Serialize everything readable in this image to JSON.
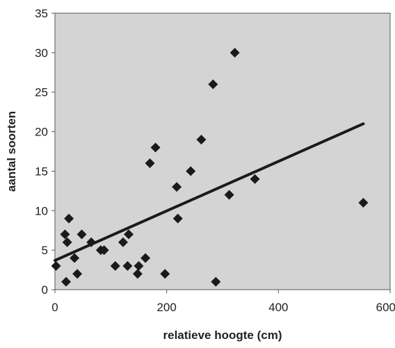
{
  "chart_data": {
    "type": "scatter",
    "title": "",
    "xlabel": "relatieve hoogte (cm)",
    "ylabel": "aantal soorten",
    "xlim": [
      0,
      600
    ],
    "ylim": [
      0,
      35
    ],
    "xticks": [
      0,
      200,
      400,
      600
    ],
    "yticks": [
      0,
      5,
      10,
      15,
      20,
      25,
      30,
      35
    ],
    "grid": false,
    "plot_background": "#d4d4d4",
    "marker_color": "#1a1a1a",
    "marker": "diamond",
    "points": [
      {
        "x": 2,
        "y": 3
      },
      {
        "x": 18,
        "y": 7
      },
      {
        "x": 20,
        "y": 1
      },
      {
        "x": 22,
        "y": 6
      },
      {
        "x": 25,
        "y": 9
      },
      {
        "x": 35,
        "y": 4
      },
      {
        "x": 40,
        "y": 2
      },
      {
        "x": 48,
        "y": 7
      },
      {
        "x": 65,
        "y": 6
      },
      {
        "x": 82,
        "y": 5
      },
      {
        "x": 88,
        "y": 5
      },
      {
        "x": 108,
        "y": 3
      },
      {
        "x": 122,
        "y": 6
      },
      {
        "x": 130,
        "y": 3
      },
      {
        "x": 132,
        "y": 7
      },
      {
        "x": 148,
        "y": 2
      },
      {
        "x": 150,
        "y": 3
      },
      {
        "x": 162,
        "y": 4
      },
      {
        "x": 170,
        "y": 16
      },
      {
        "x": 180,
        "y": 18
      },
      {
        "x": 197,
        "y": 2
      },
      {
        "x": 218,
        "y": 13
      },
      {
        "x": 220,
        "y": 9
      },
      {
        "x": 243,
        "y": 15
      },
      {
        "x": 262,
        "y": 19
      },
      {
        "x": 283,
        "y": 26
      },
      {
        "x": 288,
        "y": 1
      },
      {
        "x": 312,
        "y": 12
      },
      {
        "x": 322,
        "y": 30
      },
      {
        "x": 358,
        "y": 14
      },
      {
        "x": 552,
        "y": 11
      }
    ],
    "trendline": {
      "x": [
        0,
        552
      ],
      "y": [
        3.7,
        21.0
      ]
    }
  }
}
